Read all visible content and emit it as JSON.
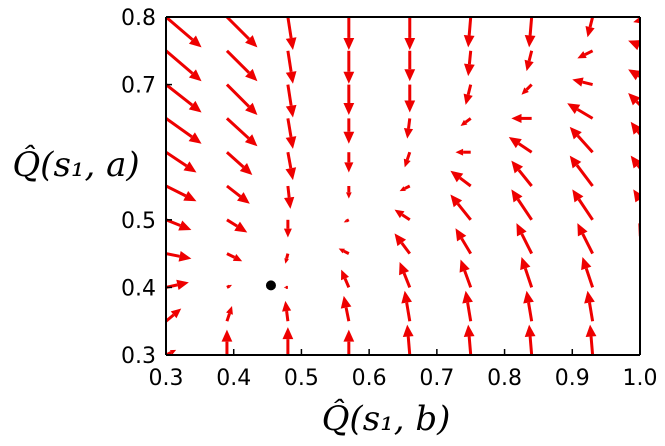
{
  "chart_data": {
    "type": "quiver",
    "xlabel": "Q̂(s₁, b)",
    "ylabel": "Q̂(s₁, a)",
    "xlim": [
      0.3,
      1.0
    ],
    "ylim": [
      0.3,
      0.8
    ],
    "x_ticks": [
      "0.3",
      "0.4",
      "0.5",
      "0.6",
      "0.7",
      "0.8",
      "0.9",
      "1.0"
    ],
    "y_ticks": [
      "0.3",
      "0.4",
      "0.5",
      "0.7",
      "0.8"
    ],
    "y_tick_values": [
      0.3,
      0.4,
      0.5,
      0.7,
      0.8
    ],
    "arrow_color": "#ee0000",
    "fixed_point": {
      "x": 0.455,
      "y": 0.403,
      "color": "#000000"
    },
    "field": {
      "grid_x": [
        0.3,
        0.39,
        0.48,
        0.57,
        0.66,
        0.75,
        0.84,
        0.93,
        1.02
      ],
      "grid_y": [
        0.3,
        0.35,
        0.4,
        0.45,
        0.5,
        0.55,
        0.6,
        0.65,
        0.7,
        0.75,
        0.8
      ],
      "rows": [
        [
          [
            0.02,
            0.01
          ],
          [
            0.0,
            0.05
          ],
          [
            0.0,
            0.055
          ],
          [
            0.0,
            0.05
          ],
          [
            -0.005,
            0.06
          ],
          [
            -0.005,
            0.06
          ],
          [
            -0.005,
            0.06
          ],
          [
            -0.005,
            0.06
          ],
          [
            -0.005,
            0.06
          ]
        ],
        [
          [
            0.03,
            0.025
          ],
          [
            0.01,
            0.03
          ],
          [
            -0.005,
            0.04
          ],
          [
            -0.01,
            0.05
          ],
          [
            -0.01,
            0.06
          ],
          [
            -0.01,
            0.06
          ],
          [
            -0.01,
            0.06
          ],
          [
            -0.01,
            0.06
          ],
          [
            -0.01,
            0.06
          ]
        ],
        [
          [
            0.045,
            0.01
          ],
          [
            0.01,
            0.005
          ],
          [
            -0.008,
            0.0
          ],
          [
            -0.015,
            0.035
          ],
          [
            -0.02,
            0.05
          ],
          [
            -0.02,
            0.055
          ],
          [
            -0.02,
            0.06
          ],
          [
            -0.02,
            0.06
          ],
          [
            -0.02,
            0.06
          ]
        ],
        [
          [
            0.05,
            -0.01
          ],
          [
            0.03,
            -0.015
          ],
          [
            -0.005,
            -0.02
          ],
          [
            -0.02,
            0.01
          ],
          [
            -0.03,
            0.04
          ],
          [
            -0.03,
            0.05
          ],
          [
            -0.03,
            0.06
          ],
          [
            -0.03,
            0.06
          ],
          [
            -0.03,
            0.06
          ]
        ],
        [
          [
            0.05,
            -0.02
          ],
          [
            0.04,
            -0.025
          ],
          [
            0.0,
            -0.035
          ],
          [
            -0.01,
            -0.005
          ],
          [
            -0.03,
            0.02
          ],
          [
            -0.04,
            0.05
          ],
          [
            -0.04,
            0.06
          ],
          [
            -0.04,
            0.06
          ],
          [
            -0.04,
            0.06
          ]
        ],
        [
          [
            0.06,
            -0.03
          ],
          [
            0.045,
            -0.035
          ],
          [
            0.005,
            -0.045
          ],
          [
            0.0,
            -0.025
          ],
          [
            -0.02,
            -0.01
          ],
          [
            -0.04,
            0.03
          ],
          [
            -0.04,
            0.05
          ],
          [
            -0.045,
            0.06
          ],
          [
            -0.045,
            0.06
          ]
        ],
        [
          [
            0.06,
            -0.04
          ],
          [
            0.05,
            -0.045
          ],
          [
            0.01,
            -0.055
          ],
          [
            0.0,
            -0.04
          ],
          [
            -0.01,
            -0.03
          ],
          [
            -0.03,
            0.0
          ],
          [
            -0.045,
            0.03
          ],
          [
            -0.045,
            0.05
          ],
          [
            -0.045,
            0.06
          ]
        ],
        [
          [
            0.07,
            -0.05
          ],
          [
            0.06,
            -0.055
          ],
          [
            0.01,
            -0.06
          ],
          [
            0.0,
            -0.05
          ],
          [
            -0.005,
            -0.04
          ],
          [
            -0.02,
            -0.015
          ],
          [
            -0.04,
            0.0
          ],
          [
            -0.05,
            0.03
          ],
          [
            -0.05,
            0.05
          ]
        ],
        [
          [
            0.07,
            -0.055
          ],
          [
            0.06,
            -0.06
          ],
          [
            0.01,
            -0.065
          ],
          [
            0.0,
            -0.06
          ],
          [
            0.0,
            -0.055
          ],
          [
            -0.01,
            -0.04
          ],
          [
            -0.02,
            -0.02
          ],
          [
            -0.04,
            0.01
          ],
          [
            -0.05,
            0.03
          ]
        ],
        [
          [
            0.07,
            -0.06
          ],
          [
            0.06,
            -0.06
          ],
          [
            0.01,
            -0.065
          ],
          [
            0.0,
            -0.065
          ],
          [
            0.0,
            -0.06
          ],
          [
            -0.005,
            -0.05
          ],
          [
            -0.01,
            -0.04
          ],
          [
            -0.03,
            -0.015
          ],
          [
            -0.05,
            0.02
          ]
        ],
        [
          [
            0.07,
            -0.06
          ],
          [
            0.06,
            -0.06
          ],
          [
            0.01,
            -0.065
          ],
          [
            0.0,
            -0.065
          ],
          [
            0.0,
            -0.065
          ],
          [
            -0.005,
            -0.06
          ],
          [
            -0.005,
            -0.06
          ],
          [
            -0.01,
            -0.04
          ],
          [
            -0.04,
            -0.01
          ]
        ]
      ]
    }
  }
}
